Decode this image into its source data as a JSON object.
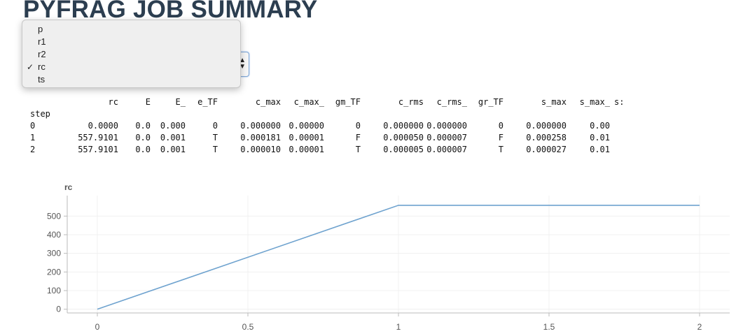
{
  "page": {
    "title": "PYFRAG JOB SUMMARY"
  },
  "select": {
    "selected": "rc",
    "options": [
      "p",
      "r1",
      "r2",
      "rc",
      "ts"
    ]
  },
  "table": {
    "columns": [
      "rc",
      "E",
      "E_",
      "e_TF",
      "c_max",
      "c_max_",
      "gm_TF",
      "c_rms",
      "c_rms_",
      "gr_TF",
      "s_max",
      "s_max_",
      "s:"
    ],
    "index_label": "step",
    "rows": [
      {
        "step": "0",
        "cells": [
          "0.0000",
          "0.0",
          "0.000",
          "0",
          "0.000000",
          "0.00000",
          "0",
          "0.000000",
          "0.000000",
          "0",
          "0.000000",
          "0.00",
          ""
        ]
      },
      {
        "step": "1",
        "cells": [
          "557.9101",
          "0.0",
          "0.001",
          "T",
          "0.000181",
          "0.00001",
          "F",
          "0.000050",
          "0.000007",
          "F",
          "0.000258",
          "0.01",
          ""
        ]
      },
      {
        "step": "2",
        "cells": [
          "557.9101",
          "0.0",
          "0.001",
          "T",
          "0.000010",
          "0.00001",
          "T",
          "0.000005",
          "0.000007",
          "T",
          "0.000027",
          "0.01",
          ""
        ]
      }
    ]
  },
  "colors": {
    "line": "#6fa3cf",
    "grid": "#f0f0f0",
    "axis": "#bbbbbb",
    "title": "#2c3e50"
  },
  "chart_data": {
    "type": "line",
    "title": "rc",
    "x": [
      0,
      1,
      2
    ],
    "series": [
      {
        "values": [
          0,
          557.9101,
          557.9101
        ]
      }
    ],
    "x_ticks": [
      "0",
      "0.5",
      "1",
      "1.5",
      "2"
    ],
    "y_ticks": [
      "0",
      "100",
      "200",
      "300",
      "400",
      "500"
    ],
    "xlim": [
      -0.1,
      2.1
    ],
    "ylim": [
      -20,
      610
    ],
    "grid": true
  }
}
